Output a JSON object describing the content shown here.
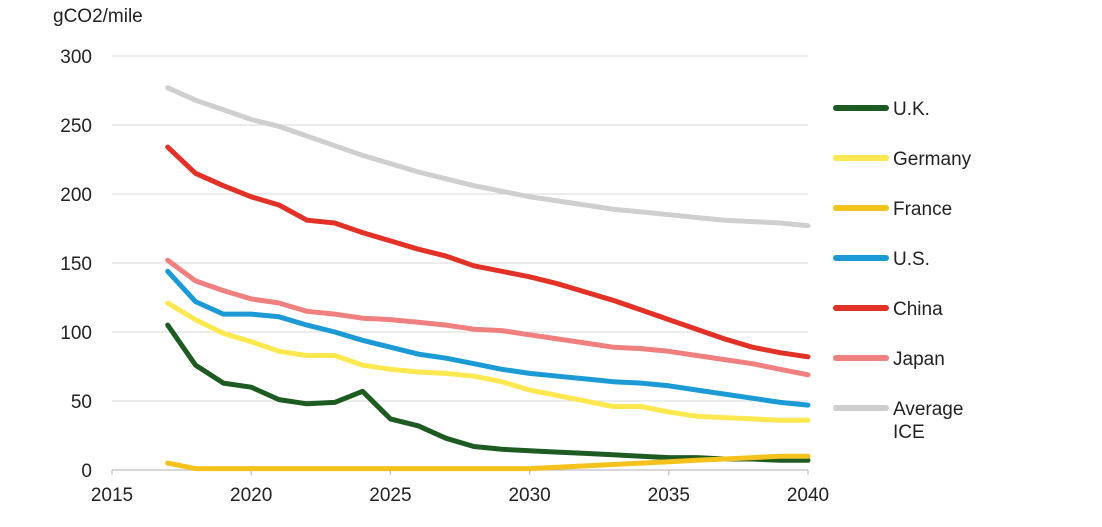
{
  "chart_data": {
    "type": "line",
    "title": "",
    "ylabel": "gCO2/mile",
    "xlabel": "",
    "xlim": [
      2015,
      2040
    ],
    "ylim": [
      0,
      300
    ],
    "x_ticks": [
      2015,
      2020,
      2025,
      2030,
      2035,
      2040
    ],
    "y_ticks": [
      0,
      50,
      100,
      150,
      200,
      250,
      300
    ],
    "grid": "horizontal",
    "legend": "right",
    "x": [
      2017,
      2018,
      2019,
      2020,
      2021,
      2022,
      2023,
      2024,
      2025,
      2026,
      2027,
      2028,
      2029,
      2030,
      2031,
      2032,
      2033,
      2034,
      2035,
      2036,
      2037,
      2038,
      2039,
      2040
    ],
    "series": [
      {
        "name": "U.K.",
        "color": "#1e5b23",
        "values": [
          105,
          76,
          63,
          60,
          51,
          48,
          49,
          57,
          37,
          32,
          23,
          17,
          15,
          14,
          13,
          12,
          11,
          10,
          9,
          9,
          8,
          8,
          7,
          7
        ]
      },
      {
        "name": "Germany",
        "color": "#fde84f",
        "values": [
          121,
          109,
          99,
          93,
          86,
          83,
          83,
          76,
          73,
          71,
          70,
          68,
          64,
          58,
          54,
          50,
          46,
          46,
          42,
          39,
          38,
          37,
          36,
          36
        ]
      },
      {
        "name": "France",
        "color": "#f5c21c",
        "values": [
          5,
          1,
          1,
          1,
          1,
          1,
          1,
          1,
          1,
          1,
          1,
          1,
          1,
          1,
          2,
          3,
          4,
          5,
          6,
          7,
          8,
          9,
          10,
          10
        ]
      },
      {
        "name": "U.S.",
        "color": "#1b9ad6",
        "values": [
          144,
          122,
          113,
          113,
          111,
          105,
          100,
          94,
          89,
          84,
          81,
          77,
          73,
          70,
          68,
          66,
          64,
          63,
          61,
          58,
          55,
          52,
          49,
          47
        ]
      },
      {
        "name": "China",
        "color": "#e23126",
        "values": [
          234,
          215,
          206,
          198,
          192,
          181,
          179,
          172,
          166,
          160,
          155,
          148,
          144,
          140,
          135,
          129,
          123,
          116,
          109,
          102,
          95,
          89,
          85,
          82
        ]
      },
      {
        "name": "Japan",
        "color": "#f08080",
        "values": [
          152,
          137,
          130,
          124,
          121,
          115,
          113,
          110,
          109,
          107,
          105,
          102,
          101,
          98,
          95,
          92,
          89,
          88,
          86,
          83,
          80,
          77,
          73,
          69
        ]
      },
      {
        "name": "Average\nICE",
        "color": "#cfcfcf",
        "values": [
          277,
          268,
          261,
          254,
          249,
          242,
          235,
          228,
          222,
          216,
          211,
          206,
          202,
          198,
          195,
          192,
          189,
          187,
          185,
          183,
          181,
          180,
          179,
          177
        ]
      }
    ]
  }
}
